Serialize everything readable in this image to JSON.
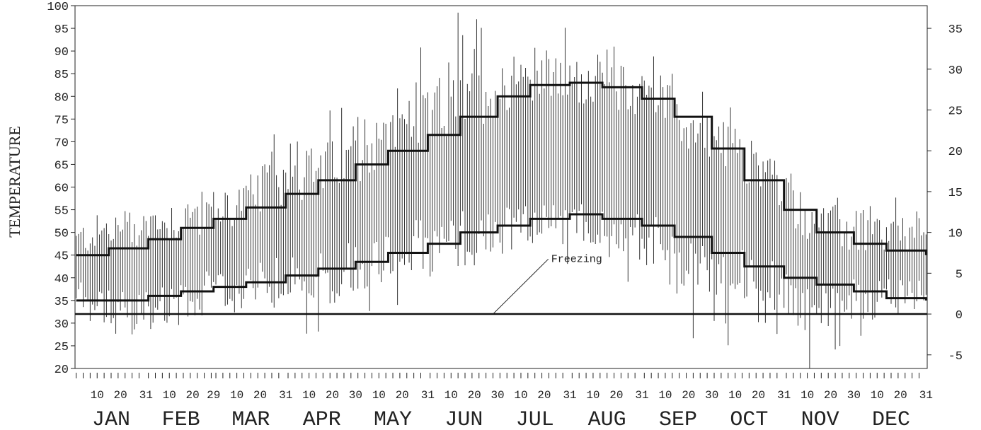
{
  "chart_data": {
    "type": "bar",
    "subtype": "daily temperature range bars with normal high/low step lines",
    "ylabel": "TEMPERATURE",
    "ylim_left": [
      20,
      100
    ],
    "yticks_left": [
      20,
      25,
      30,
      35,
      40,
      45,
      50,
      55,
      60,
      65,
      70,
      75,
      80,
      85,
      90,
      95,
      100
    ],
    "ylim_right": [
      -6.67,
      37.78
    ],
    "yticks_right": [
      -5,
      0,
      5,
      10,
      15,
      20,
      25,
      30,
      35
    ],
    "x_range_days": [
      1,
      366
    ],
    "grid": false,
    "months": [
      {
        "name": "JAN",
        "days": 31,
        "labels": [
          10,
          20,
          31
        ]
      },
      {
        "name": "FEB",
        "days": 29,
        "labels": [
          10,
          20,
          29
        ]
      },
      {
        "name": "MAR",
        "days": 31,
        "labels": [
          10,
          20,
          31
        ]
      },
      {
        "name": "APR",
        "days": 30,
        "labels": [
          10,
          20,
          30
        ]
      },
      {
        "name": "MAY",
        "days": 31,
        "labels": [
          10,
          20,
          31
        ]
      },
      {
        "name": "JUN",
        "days": 30,
        "labels": [
          10,
          20,
          30
        ]
      },
      {
        "name": "JUL",
        "days": 31,
        "labels": [
          10,
          20,
          31
        ]
      },
      {
        "name": "AUG",
        "days": 31,
        "labels": [
          10,
          20,
          31
        ]
      },
      {
        "name": "SEP",
        "days": 30,
        "labels": [
          10,
          20,
          30
        ]
      },
      {
        "name": "OCT",
        "days": 31,
        "labels": [
          10,
          20,
          31
        ]
      },
      {
        "name": "NOV",
        "days": 30,
        "labels": [
          10,
          20,
          30
        ]
      },
      {
        "name": "DEC",
        "days": 31,
        "labels": [
          10,
          20,
          31
        ]
      }
    ],
    "normal_high": {
      "x": [
        1,
        15,
        32,
        46,
        60,
        74,
        91,
        105,
        121,
        135,
        152,
        166,
        182,
        196,
        213,
        227,
        244,
        258,
        274,
        288,
        305,
        319,
        335,
        349,
        366
      ],
      "y": [
        45,
        46.5,
        48.5,
        51,
        53,
        55.5,
        58.5,
        61.5,
        65,
        68,
        71.5,
        75.5,
        80,
        82.5,
        83,
        82,
        79.5,
        75.5,
        68.5,
        61.5,
        55,
        50,
        47.5,
        46,
        45
      ]
    },
    "normal_low": {
      "x": [
        1,
        15,
        32,
        46,
        60,
        74,
        91,
        105,
        121,
        135,
        152,
        166,
        182,
        196,
        213,
        227,
        244,
        258,
        274,
        288,
        305,
        319,
        335,
        349,
        366
      ],
      "y": [
        35,
        35,
        36,
        37,
        38,
        39,
        40.5,
        42,
        43.5,
        45.5,
        47.5,
        50,
        51.5,
        53,
        54,
        53,
        51.5,
        49,
        45.5,
        42.5,
        40,
        38.5,
        37,
        35.5,
        35
      ]
    },
    "freezing": {
      "y": 32
    },
    "annotations": [
      {
        "text": "Freezing",
        "target_day": 180,
        "target_y": 32,
        "label_day": 205,
        "label_y": 43.5
      }
    ],
    "daily_ranges": {
      "day_start": 1,
      "day_end": 366,
      "anchors": [
        {
          "day": 1,
          "high": 48,
          "low": 37,
          "var": 4,
          "spike_high": 0,
          "spike_low": 0
        },
        {
          "day": 10,
          "high": 50,
          "low": 34,
          "var": 4,
          "spike_high": 0,
          "spike_low": 6
        },
        {
          "day": 25,
          "high": 51,
          "low": 32,
          "var": 5,
          "spike_high": 6,
          "spike_low": 6
        },
        {
          "day": 45,
          "high": 53,
          "low": 36,
          "var": 5,
          "spike_high": 0,
          "spike_low": 4
        },
        {
          "day": 70,
          "high": 56,
          "low": 37,
          "var": 5,
          "spike_high": 2,
          "spike_low": 0
        },
        {
          "day": 90,
          "high": 62,
          "low": 39,
          "var": 6,
          "spike_high": 15,
          "spike_low": 8
        },
        {
          "day": 115,
          "high": 65,
          "low": 42,
          "var": 6,
          "spike_high": 8,
          "spike_low": 8
        },
        {
          "day": 140,
          "high": 72,
          "low": 46,
          "var": 6,
          "spike_high": 8,
          "spike_low": 6
        },
        {
          "day": 165,
          "high": 78,
          "low": 48,
          "var": 7,
          "spike_high": 17,
          "spike_low": 4
        },
        {
          "day": 195,
          "high": 84,
          "low": 52,
          "var": 5,
          "spike_high": 9,
          "spike_low": 0
        },
        {
          "day": 225,
          "high": 83,
          "low": 52,
          "var": 5,
          "spike_high": 7,
          "spike_low": 10
        },
        {
          "day": 250,
          "high": 80,
          "low": 48,
          "var": 6,
          "spike_high": 10,
          "spike_low": 2
        },
        {
          "day": 265,
          "high": 73,
          "low": 42,
          "var": 6,
          "spike_high": 4,
          "spike_low": 12
        },
        {
          "day": 295,
          "high": 64,
          "low": 40,
          "var": 6,
          "spike_high": 6,
          "spike_low": 12
        },
        {
          "day": 315,
          "high": 53,
          "low": 33,
          "var": 5,
          "spike_high": 0,
          "spike_low": 13
        },
        {
          "day": 335,
          "high": 50,
          "low": 35,
          "var": 5,
          "spike_high": 3,
          "spike_low": 6
        },
        {
          "day": 366,
          "high": 49,
          "low": 37,
          "var": 4,
          "spike_high": 6,
          "spike_low": 0
        }
      ]
    }
  }
}
